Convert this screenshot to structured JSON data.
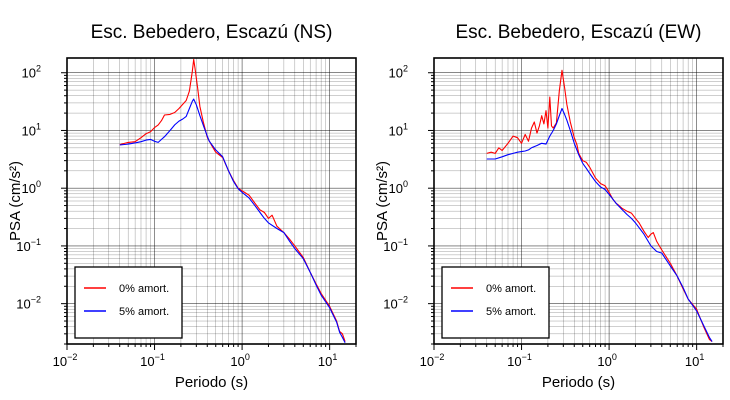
{
  "chart_data": [
    {
      "type": "line",
      "title": "Esc. Bebedero, Escazú (NS)",
      "xlabel": "Periodo (s)",
      "ylabel": "PSA (cm/s²)",
      "xscale": "log",
      "yscale": "log",
      "xlim": [
        0.01,
        20
      ],
      "ylim": [
        0.002,
        180
      ],
      "grid": true,
      "legend_position": "bottom-left",
      "x_ticks": [
        {
          "value": 0.01,
          "base": "10",
          "exp": "−2"
        },
        {
          "value": 0.1,
          "base": "10",
          "exp": "−1"
        },
        {
          "value": 1,
          "base": "10",
          "exp": "0"
        },
        {
          "value": 10,
          "base": "10",
          "exp": "1"
        }
      ],
      "y_ticks": [
        {
          "value": 0.01,
          "base": "10",
          "exp": "−2"
        },
        {
          "value": 0.1,
          "base": "10",
          "exp": "−1"
        },
        {
          "value": 1,
          "base": "10",
          "exp": "0"
        },
        {
          "value": 10,
          "base": "10",
          "exp": "1"
        },
        {
          "value": 100,
          "base": "10",
          "exp": "2"
        }
      ],
      "series": [
        {
          "name": "0% amort.",
          "color": "#ff0000",
          "points": [
            [
              0.04,
              5.7
            ],
            [
              0.05,
              6.2
            ],
            [
              0.06,
              6.4
            ],
            [
              0.07,
              7.5
            ],
            [
              0.08,
              8.8
            ],
            [
              0.09,
              9.5
            ],
            [
              0.1,
              11.2
            ],
            [
              0.11,
              12.5
            ],
            [
              0.12,
              14.8
            ],
            [
              0.13,
              18.5
            ],
            [
              0.15,
              19.0
            ],
            [
              0.17,
              20.5
            ],
            [
              0.19,
              24.0
            ],
            [
              0.21,
              28.5
            ],
            [
              0.23,
              33.0
            ],
            [
              0.25,
              48.0
            ],
            [
              0.27,
              105.0
            ],
            [
              0.28,
              170.0
            ],
            [
              0.29,
              120.0
            ],
            [
              0.31,
              55.0
            ],
            [
              0.33,
              26.0
            ],
            [
              0.36,
              14.0
            ],
            [
              0.4,
              7.6
            ],
            [
              0.45,
              5.5
            ],
            [
              0.5,
              4.2
            ],
            [
              0.6,
              3.4
            ],
            [
              0.7,
              2.0
            ],
            [
              0.8,
              1.35
            ],
            [
              0.9,
              1.0
            ],
            [
              1.0,
              0.9
            ],
            [
              1.2,
              0.76
            ],
            [
              1.4,
              0.55
            ],
            [
              1.6,
              0.42
            ],
            [
              1.8,
              0.38
            ],
            [
              2.0,
              0.3
            ],
            [
              2.2,
              0.34
            ],
            [
              2.5,
              0.22
            ],
            [
              3.0,
              0.17
            ],
            [
              3.5,
              0.13
            ],
            [
              4.0,
              0.1
            ],
            [
              5.0,
              0.063
            ],
            [
              6.0,
              0.035
            ],
            [
              7.0,
              0.022
            ],
            [
              8.0,
              0.015
            ],
            [
              10.0,
              0.009
            ],
            [
              12.0,
              0.005
            ],
            [
              13.0,
              0.0033
            ],
            [
              14.0,
              0.003
            ],
            [
              15.0,
              0.0022
            ]
          ]
        },
        {
          "name": "5% amort.",
          "color": "#0000ff",
          "points": [
            [
              0.04,
              5.6
            ],
            [
              0.05,
              5.8
            ],
            [
              0.06,
              6.1
            ],
            [
              0.07,
              6.4
            ],
            [
              0.08,
              6.8
            ],
            [
              0.09,
              7.0
            ],
            [
              0.1,
              6.5
            ],
            [
              0.11,
              6.2
            ],
            [
              0.12,
              7.0
            ],
            [
              0.13,
              7.8
            ],
            [
              0.15,
              10.0
            ],
            [
              0.17,
              12.5
            ],
            [
              0.19,
              14.5
            ],
            [
              0.21,
              15.8
            ],
            [
              0.23,
              17.5
            ],
            [
              0.25,
              24.0
            ],
            [
              0.27,
              32.0
            ],
            [
              0.28,
              35.0
            ],
            [
              0.3,
              28.0
            ],
            [
              0.33,
              18.0
            ],
            [
              0.37,
              11.0
            ],
            [
              0.42,
              6.6
            ],
            [
              0.5,
              4.6
            ],
            [
              0.6,
              3.5
            ],
            [
              0.7,
              2.0
            ],
            [
              0.8,
              1.3
            ],
            [
              0.9,
              0.98
            ],
            [
              1.0,
              0.85
            ],
            [
              1.2,
              0.68
            ],
            [
              1.4,
              0.5
            ],
            [
              1.6,
              0.38
            ],
            [
              1.8,
              0.3
            ],
            [
              2.0,
              0.25
            ],
            [
              2.5,
              0.2
            ],
            [
              3.0,
              0.17
            ],
            [
              3.5,
              0.12
            ],
            [
              4.0,
              0.09
            ],
            [
              5.0,
              0.06
            ],
            [
              6.0,
              0.035
            ],
            [
              7.0,
              0.021
            ],
            [
              8.0,
              0.014
            ],
            [
              10.0,
              0.0085
            ],
            [
              12.0,
              0.0048
            ],
            [
              13.0,
              0.0032
            ],
            [
              14.0,
              0.0026
            ],
            [
              15.0,
              0.0021
            ]
          ]
        }
      ]
    },
    {
      "type": "line",
      "title": "Esc. Bebedero, Escazú (EW)",
      "xlabel": "Periodo (s)",
      "ylabel": "PSA (cm/s²)",
      "xscale": "log",
      "yscale": "log",
      "xlim": [
        0.01,
        20
      ],
      "ylim": [
        0.002,
        180
      ],
      "grid": true,
      "legend_position": "bottom-left",
      "x_ticks": [
        {
          "value": 0.01,
          "base": "10",
          "exp": "−2"
        },
        {
          "value": 0.1,
          "base": "10",
          "exp": "−1"
        },
        {
          "value": 1,
          "base": "10",
          "exp": "0"
        },
        {
          "value": 10,
          "base": "10",
          "exp": "1"
        }
      ],
      "y_ticks": [
        {
          "value": 0.01,
          "base": "10",
          "exp": "−2"
        },
        {
          "value": 0.1,
          "base": "10",
          "exp": "−1"
        },
        {
          "value": 1,
          "base": "10",
          "exp": "0"
        },
        {
          "value": 10,
          "base": "10",
          "exp": "1"
        },
        {
          "value": 100,
          "base": "10",
          "exp": "2"
        }
      ],
      "series": [
        {
          "name": "0% amort.",
          "color": "#ff0000",
          "points": [
            [
              0.04,
              4.0
            ],
            [
              0.045,
              4.2
            ],
            [
              0.05,
              4.0
            ],
            [
              0.055,
              5.0
            ],
            [
              0.06,
              4.5
            ],
            [
              0.07,
              6.0
            ],
            [
              0.08,
              8.0
            ],
            [
              0.09,
              7.5
            ],
            [
              0.1,
              6.0
            ],
            [
              0.11,
              8.5
            ],
            [
              0.12,
              6.5
            ],
            [
              0.13,
              11.0
            ],
            [
              0.14,
              14.0
            ],
            [
              0.15,
              9.0
            ],
            [
              0.16,
              12.0
            ],
            [
              0.17,
              18.0
            ],
            [
              0.18,
              13.0
            ],
            [
              0.19,
              22.0
            ],
            [
              0.2,
              11.0
            ],
            [
              0.21,
              38.0
            ],
            [
              0.22,
              12.0
            ],
            [
              0.23,
              11.0
            ],
            [
              0.25,
              13.5
            ],
            [
              0.27,
              48.0
            ],
            [
              0.29,
              110.0
            ],
            [
              0.31,
              55.0
            ],
            [
              0.33,
              28.0
            ],
            [
              0.36,
              14.0
            ],
            [
              0.4,
              7.5
            ],
            [
              0.43,
              5.6
            ],
            [
              0.45,
              4.0
            ],
            [
              0.5,
              3.0
            ],
            [
              0.55,
              2.8
            ],
            [
              0.6,
              2.3
            ],
            [
              0.7,
              1.5
            ],
            [
              0.8,
              1.2
            ],
            [
              0.9,
              1.1
            ],
            [
              1.0,
              0.85
            ],
            [
              1.1,
              0.65
            ],
            [
              1.2,
              0.55
            ],
            [
              1.3,
              0.5
            ],
            [
              1.4,
              0.45
            ],
            [
              1.6,
              0.4
            ],
            [
              1.8,
              0.37
            ],
            [
              2.0,
              0.3
            ],
            [
              2.2,
              0.25
            ],
            [
              2.5,
              0.18
            ],
            [
              2.8,
              0.14
            ],
            [
              3.0,
              0.16
            ],
            [
              3.2,
              0.17
            ],
            [
              3.5,
              0.12
            ],
            [
              4.0,
              0.085
            ],
            [
              5.0,
              0.05
            ],
            [
              6.0,
              0.03
            ],
            [
              7.0,
              0.018
            ],
            [
              8.0,
              0.012
            ],
            [
              10.0,
              0.008
            ],
            [
              12.0,
              0.004
            ],
            [
              14.0,
              0.0024
            ],
            [
              15.0,
              0.0022
            ]
          ]
        },
        {
          "name": "5% amort.",
          "color": "#0000ff",
          "points": [
            [
              0.04,
              3.2
            ],
            [
              0.05,
              3.2
            ],
            [
              0.06,
              3.5
            ],
            [
              0.07,
              3.8
            ],
            [
              0.08,
              4.0
            ],
            [
              0.09,
              4.2
            ],
            [
              0.1,
              4.3
            ],
            [
              0.11,
              4.4
            ],
            [
              0.12,
              4.6
            ],
            [
              0.13,
              5.0
            ],
            [
              0.15,
              5.5
            ],
            [
              0.17,
              6.0
            ],
            [
              0.19,
              5.8
            ],
            [
              0.21,
              8.0
            ],
            [
              0.23,
              10.0
            ],
            [
              0.25,
              13.0
            ],
            [
              0.27,
              18.0
            ],
            [
              0.29,
              24.0
            ],
            [
              0.31,
              19.0
            ],
            [
              0.33,
              15.0
            ],
            [
              0.36,
              10.0
            ],
            [
              0.4,
              6.0
            ],
            [
              0.45,
              3.8
            ],
            [
              0.5,
              2.7
            ],
            [
              0.55,
              2.2
            ],
            [
              0.6,
              1.8
            ],
            [
              0.7,
              1.3
            ],
            [
              0.8,
              1.05
            ],
            [
              0.9,
              0.95
            ],
            [
              1.0,
              0.78
            ],
            [
              1.2,
              0.55
            ],
            [
              1.4,
              0.43
            ],
            [
              1.6,
              0.35
            ],
            [
              1.8,
              0.3
            ],
            [
              2.0,
              0.25
            ],
            [
              2.5,
              0.16
            ],
            [
              3.0,
              0.1
            ],
            [
              3.5,
              0.08
            ],
            [
              4.0,
              0.075
            ],
            [
              5.0,
              0.045
            ],
            [
              6.0,
              0.03
            ],
            [
              7.0,
              0.019
            ],
            [
              8.0,
              0.012
            ],
            [
              10.0,
              0.0075
            ],
            [
              12.0,
              0.0042
            ],
            [
              14.0,
              0.0026
            ],
            [
              15.0,
              0.0022
            ]
          ]
        }
      ]
    }
  ]
}
